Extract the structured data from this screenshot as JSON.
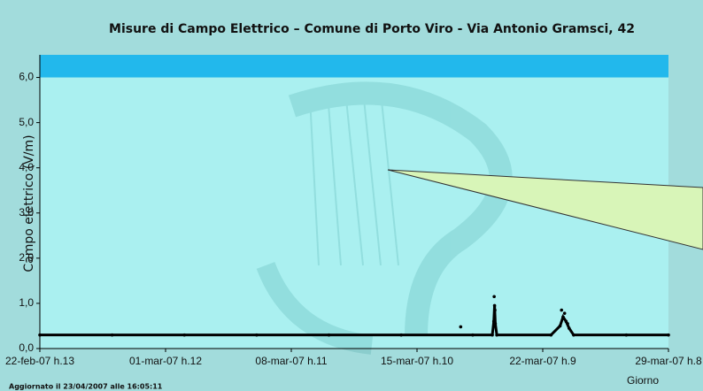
{
  "chart_data": {
    "type": "line",
    "title": "Misure di Campo Elettrico – Comune di Porto Viro  - Via Antonio Gramsci, 42",
    "y_label": "Campo elettrico (V/m)",
    "x_label": "Giorno",
    "footnote": "Aggiornato il 23/04/2007 alle 16:05:11",
    "background": "#aaf0f0",
    "band": {
      "from": 6,
      "to": 6.5,
      "color": "#22b8ec"
    },
    "xlim": [
      "2007-02-22 13:00",
      "2007-03-29 08:00"
    ],
    "xticks": [
      {
        "value": "2007-02-22 13:00",
        "label": "22-feb-07 h.13"
      },
      {
        "value": "2007-03-01 12:00",
        "label": "01-mar-07 h.12"
      },
      {
        "value": "2007-03-08 11:00",
        "label": "08-mar-07 h.11"
      },
      {
        "value": "2007-03-15 10:00",
        "label": "15-mar-07 h.10"
      },
      {
        "value": "2007-03-22 09:00",
        "label": "22-mar-07 h.9"
      },
      {
        "value": "2007-03-29 08:00",
        "label": "29-mar-07 h.8"
      }
    ],
    "ylim": [
      0,
      6.5
    ],
    "yticks": [
      {
        "value": 0,
        "label": "0,0"
      },
      {
        "value": 1,
        "label": "1,0"
      },
      {
        "value": 2,
        "label": "2,0"
      },
      {
        "value": 3,
        "label": "3,0"
      },
      {
        "value": 4,
        "label": "4,0"
      },
      {
        "value": 5,
        "label": "5,0"
      },
      {
        "value": 6,
        "label": "6,0"
      }
    ],
    "series": [
      {
        "color": "#000000",
        "style": "line",
        "x": [
          "2007-02-22 13:00",
          "2007-02-26 13:00",
          "2007-03-02 13:00",
          "2007-03-06 13:00",
          "2007-03-10 13:00",
          "2007-03-14 13:00",
          "2007-03-18 12:00",
          "2007-03-19 14:00",
          "2007-03-19 16:00",
          "2007-03-19 17:00",
          "2007-03-19 18:00",
          "2007-03-19 20:00",
          "2007-03-22 20:00",
          "2007-03-23 08:00",
          "2007-03-23 12:00",
          "2007-03-23 16:00",
          "2007-03-23 20:00",
          "2007-03-24 02:00",
          "2007-03-27 00:00",
          "2007-03-29 08:00"
        ],
        "values": [
          0.3,
          0.3,
          0.3,
          0.3,
          0.3,
          0.3,
          0.3,
          0.3,
          0.6,
          0.95,
          0.55,
          0.3,
          0.3,
          0.5,
          0.7,
          0.6,
          0.45,
          0.3,
          0.3,
          0.3
        ]
      },
      {
        "color": "#000000",
        "style": "markers",
        "x": [
          "2007-03-17 20:00",
          "2007-03-19 16:30",
          "2007-03-19 17:30",
          "2007-03-23 10:00",
          "2007-03-23 14:00",
          "2007-03-23 18:00"
        ],
        "values": [
          0.48,
          1.15,
          0.85,
          0.85,
          0.78,
          0.55
        ]
      }
    ]
  }
}
